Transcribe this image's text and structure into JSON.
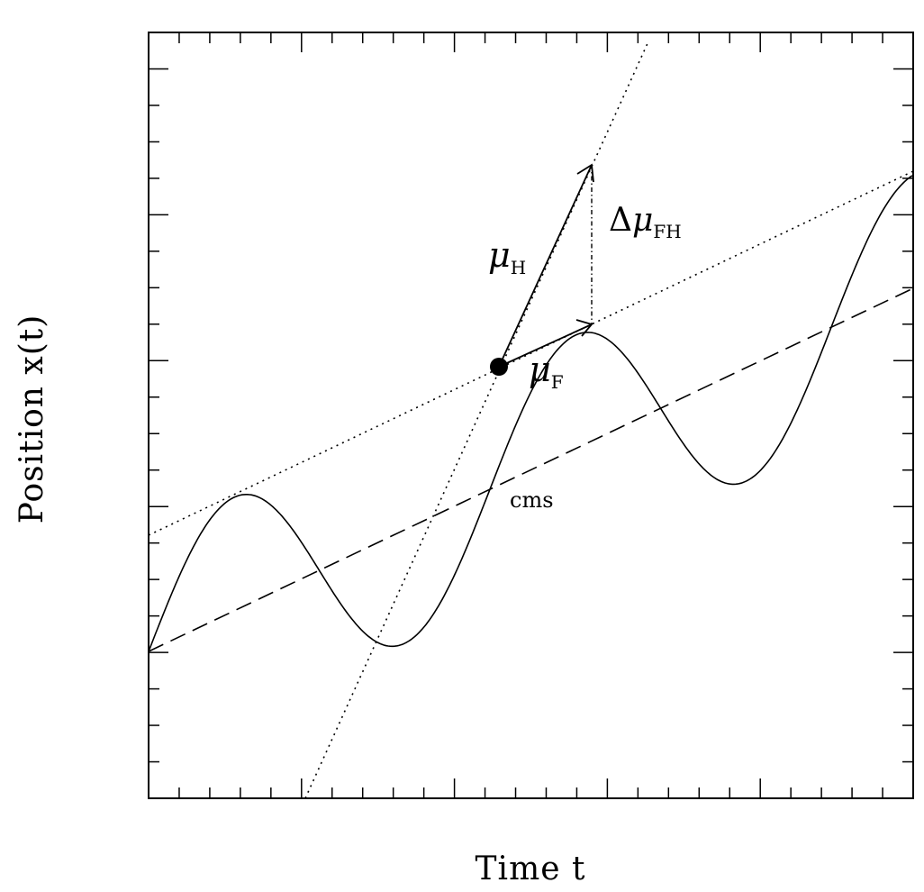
{
  "axes": {
    "xlabel": "Time t",
    "ylabel": "Position x(t)"
  },
  "labels": {
    "mu_h": {
      "symbol": "μ",
      "subscript": "H"
    },
    "mu_f": {
      "symbol": "μ",
      "subscript": "F"
    },
    "delta_mu": {
      "delta": "Δ",
      "symbol": "μ",
      "subscript": "FH"
    },
    "cms": "cms"
  },
  "colors": {
    "ink": "#000000",
    "background": "#ffffff"
  }
}
